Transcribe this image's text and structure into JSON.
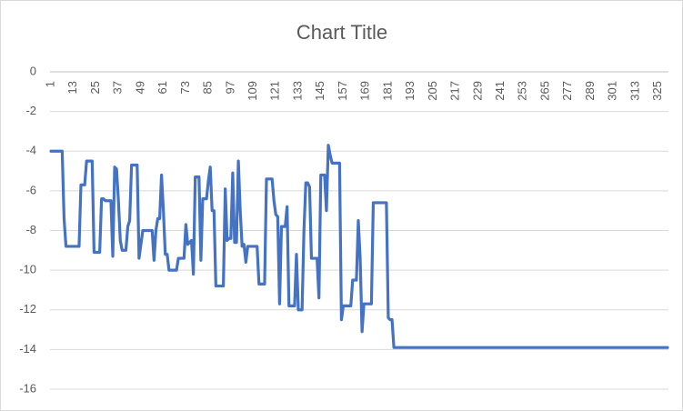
{
  "chart_data": {
    "type": "line",
    "title": "Chart Title",
    "categories": [
      1,
      null,
      null,
      null,
      null,
      null,
      null,
      null,
      null,
      null,
      null,
      null,
      13,
      null,
      null,
      null,
      null,
      null,
      null,
      null,
      null,
      null,
      null,
      null,
      25,
      null,
      null,
      null,
      null,
      null,
      null,
      null,
      null,
      null,
      null,
      null,
      37,
      null,
      null,
      null,
      null,
      null,
      null,
      null,
      null,
      null,
      null,
      null,
      49,
      null,
      null,
      null,
      null,
      null,
      null,
      null,
      null,
      null,
      null,
      null,
      61,
      null,
      null,
      null,
      null,
      null,
      null,
      null,
      null,
      null,
      null,
      null,
      73,
      null,
      null,
      null,
      null,
      null,
      null,
      null,
      null,
      null,
      null,
      null,
      85,
      null,
      null,
      null,
      null,
      null,
      null,
      null,
      null,
      null,
      null,
      null,
      97,
      null,
      null,
      null,
      null,
      null,
      null,
      null,
      null,
      null,
      null,
      null,
      109,
      null,
      null,
      null,
      null,
      null,
      null,
      null,
      null,
      null,
      null,
      null,
      121,
      null,
      null,
      null,
      null,
      null,
      null,
      null,
      null,
      null,
      null,
      null,
      133,
      null,
      null,
      null,
      null,
      null,
      null,
      null,
      null,
      null,
      null,
      null,
      145,
      null,
      null,
      null,
      null,
      null,
      null,
      null,
      null,
      null,
      null,
      null,
      157,
      null,
      null,
      null,
      null,
      null,
      null,
      null,
      null,
      null,
      null,
      null,
      169,
      null,
      null,
      null,
      null,
      null,
      null,
      null,
      null,
      null,
      null,
      null,
      181,
      null,
      null,
      null,
      null,
      null,
      null,
      null,
      null,
      null,
      null,
      null,
      193,
      null,
      null,
      null,
      null,
      null,
      null,
      null,
      null,
      null,
      null,
      null,
      205,
      null,
      null,
      null,
      null,
      null,
      null,
      null,
      null,
      null,
      null,
      null,
      217,
      null,
      null,
      null,
      null,
      null,
      null,
      null,
      null,
      null,
      null,
      null,
      229,
      null,
      null,
      null,
      null,
      null,
      null,
      null,
      null,
      null,
      null,
      null,
      241,
      null,
      null,
      null,
      null,
      null,
      null,
      null,
      null,
      null,
      null,
      null,
      253,
      null,
      null,
      null,
      null,
      null,
      null,
      null,
      null,
      null,
      null,
      null,
      265,
      null,
      null,
      null,
      null,
      null,
      null,
      null,
      null,
      null,
      null,
      null,
      277,
      null,
      null,
      null,
      null,
      null,
      null,
      null,
      null,
      null,
      null,
      null,
      289,
      null,
      null,
      null,
      null,
      null,
      null,
      null,
      null,
      null,
      null,
      null,
      301,
      null,
      null,
      null,
      null,
      null,
      null,
      null,
      null,
      null,
      null,
      null,
      313,
      null,
      null,
      null,
      null,
      null,
      null,
      null,
      null,
      null,
      null,
      null,
      325,
      null,
      null,
      null,
      null,
      null
    ],
    "values": [
      -4,
      -4,
      -4,
      -4,
      -4,
      -4,
      -4,
      -7.4,
      -8.8,
      -8.8,
      -8.8,
      -8.8,
      -8.8,
      -8.8,
      -8.8,
      -8.8,
      -5.7,
      -5.7,
      -5.7,
      -4.5,
      -4.5,
      -4.5,
      -4.5,
      -9.1,
      -9.1,
      -9.1,
      -9.1,
      -6.4,
      -6.4,
      -6.5,
      -6.5,
      -6.5,
      -6.5,
      -9.3,
      -4.8,
      -4.9,
      -6.5,
      -8.5,
      -9,
      -9,
      -9,
      -7.8,
      -7.5,
      -4.7,
      -4.7,
      -4.7,
      -4.7,
      -9.4,
      -8.7,
      -8,
      -8,
      -8,
      -8,
      -8,
      -8,
      -9.5,
      -8,
      -7.4,
      -7.4,
      -5.2,
      -7,
      -9.2,
      -9.2,
      -10,
      -10,
      -10,
      -10,
      -10,
      -9.4,
      -9.4,
      -9.4,
      -9.4,
      -7.7,
      -8.7,
      -8.6,
      -8.5,
      -10.2,
      -5.3,
      -5.3,
      -5.3,
      -9.5,
      -6.4,
      -6.4,
      -6.4,
      -5.5,
      -4.8,
      -7,
      -7,
      -10.8,
      -10.8,
      -10.8,
      -10.8,
      -10.8,
      -5.9,
      -8.5,
      -8.4,
      -8.4,
      -5.1,
      -8.6,
      -8.6,
      -4.5,
      -7,
      -8.8,
      -8.7,
      -9.6,
      -8.8,
      -8.8,
      -8.8,
      -8.8,
      -8.8,
      -8.8,
      -10.7,
      -10.7,
      -10.7,
      -10.7,
      -5.4,
      -5.4,
      -5.4,
      -5.4,
      -6.5,
      -7.2,
      -7.3,
      -11.7,
      -7.8,
      -7.8,
      -7.8,
      -6.8,
      -11.8,
      -11.8,
      -11.8,
      -11.8,
      -9.2,
      -12,
      -12,
      -12,
      -8,
      -5.6,
      -5.6,
      -5.8,
      -9.4,
      -9.4,
      -9.4,
      -9.4,
      -11.4,
      -5.2,
      -5.2,
      -5.2,
      -7,
      -3.7,
      -4.2,
      -4.6,
      -4.6,
      -4.6,
      -4.6,
      -4.6,
      -12.5,
      -11.8,
      -11.8,
      -11.8,
      -11.8,
      -11.8,
      -10.5,
      -10.5,
      -10.5,
      -7.5,
      -9.4,
      -13.1,
      -11.7,
      -11.7,
      -11.7,
      -11.7,
      -11.7,
      -6.6,
      -6.6,
      -6.6,
      -6.6,
      -6.6,
      -6.6,
      -6.6,
      -6.6,
      -12.4,
      -12.5,
      -12.5,
      -13.9,
      -13.9,
      -13.9,
      -13.9,
      -13.9,
      -13.9,
      -13.9,
      -13.9,
      -13.9,
      -13.9,
      -13.9,
      -13.9,
      -13.9,
      -13.9,
      -13.9,
      -13.9,
      -13.9,
      -13.9,
      -13.9,
      -13.9,
      -13.9,
      -13.9,
      -13.9,
      -13.9,
      -13.9,
      -13.9,
      -13.9,
      -13.9,
      -13.9,
      -13.9,
      -13.9,
      -13.9,
      -13.9,
      -13.9,
      -13.9,
      -13.9,
      -13.9,
      -13.9,
      -13.9,
      -13.9,
      -13.9,
      -13.9,
      -13.9,
      -13.9,
      -13.9,
      -13.9,
      -13.9,
      -13.9,
      -13.9,
      -13.9,
      -13.9,
      -13.9,
      -13.9,
      -13.9,
      -13.9,
      -13.9,
      -13.9,
      -13.9,
      -13.9,
      -13.9,
      -13.9,
      -13.9,
      -13.9,
      -13.9,
      -13.9,
      -13.9,
      -13.9,
      -13.9,
      -13.9,
      -13.9,
      -13.9,
      -13.9,
      -13.9,
      -13.9,
      -13.9,
      -13.9,
      -13.9,
      -13.9,
      -13.9,
      -13.9,
      -13.9,
      -13.9,
      -13.9,
      -13.9,
      -13.9,
      -13.9,
      -13.9,
      -13.9,
      -13.9,
      -13.9,
      -13.9,
      -13.9,
      -13.9,
      -13.9,
      -13.9,
      -13.9,
      -13.9,
      -13.9,
      -13.9,
      -13.9,
      -13.9,
      -13.9,
      -13.9,
      -13.9,
      -13.9,
      -13.9,
      -13.9,
      -13.9,
      -13.9,
      -13.9,
      -13.9,
      -13.9,
      -13.9,
      -13.9,
      -13.9,
      -13.9,
      -13.9,
      -13.9,
      -13.9,
      -13.9,
      -13.9,
      -13.9,
      -13.9,
      -13.9,
      -13.9,
      -13.9,
      -13.9,
      -13.9,
      -13.9,
      -13.9,
      -13.9,
      -13.9,
      -13.9,
      -13.9,
      -13.9,
      -13.9,
      -13.9,
      -13.9,
      -13.9,
      -13.9,
      -13.9,
      -13.9,
      -13.9,
      -13.9,
      -13.9,
      -13.9,
      -13.9
    ],
    "color": "#4472c4",
    "ylim": [
      -16,
      0
    ],
    "yticks": [
      0,
      -2,
      -4,
      -6,
      -8,
      -10,
      -12,
      -14,
      -16
    ],
    "grid": true
  }
}
